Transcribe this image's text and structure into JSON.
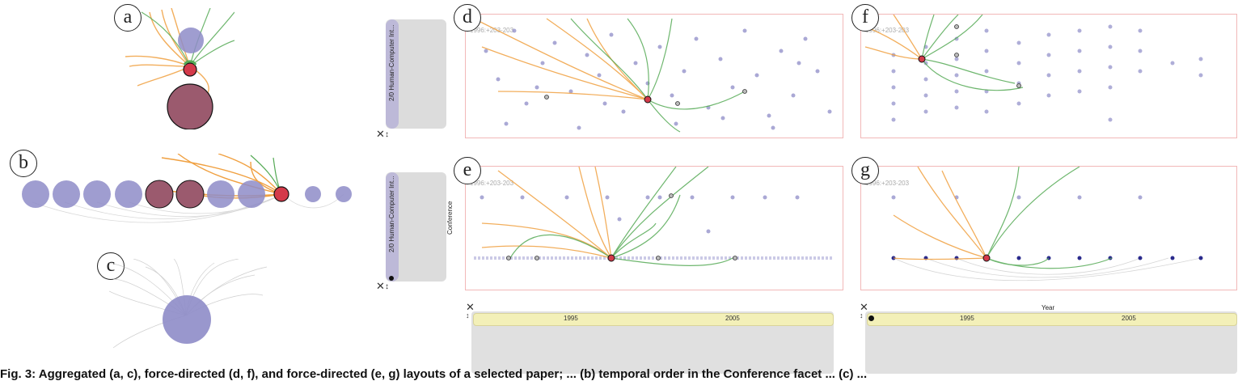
{
  "labels": {
    "a": "a",
    "b": "b",
    "c": "c",
    "d": "d",
    "e": "e",
    "f": "f",
    "g": "g"
  },
  "pinned_node_label": "1996:+203-203",
  "sidebar_tab_text": "2/0 Human-Computer Int...",
  "axis_conference": "Conference",
  "axis_year": "Year",
  "timeline_ticks": [
    "1995",
    "2005"
  ],
  "close_symbol": "✕",
  "resize_symbol": "↕",
  "caption": "Fig. 3: Aggregated (a, c), force-directed (d, f), and force-directed (e, g) layouts of a selected paper; ... (b) temporal order in the Conference facet ... (c) ... ",
  "colors": {
    "orange": "#f0a040",
    "green": "#55aa55",
    "node": "#8e8cc8",
    "highlight": "#d43a4a",
    "maroon": "#9b5a6e"
  }
}
